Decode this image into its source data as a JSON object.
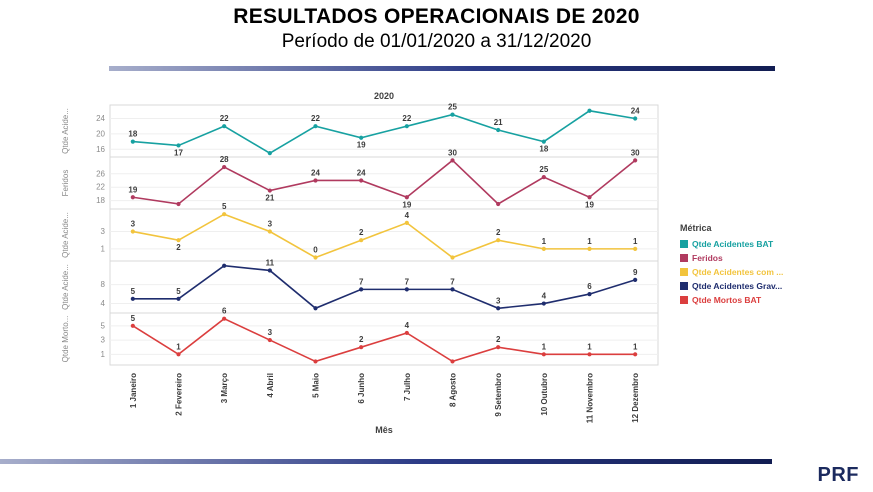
{
  "header": {
    "title": "RESULTADOS OPERACIONAIS DE 2020",
    "subtitle": "Período de 01/01/2020 a 31/12/2020"
  },
  "footer": {
    "logo": "PRF"
  },
  "theme": {
    "bar_gradient_left": "#A7AECB",
    "bar_gradient_mid": "#2B3A86",
    "bar_gradient_right": "#121D52",
    "logo_color": "#1B2A5E"
  },
  "chart_data": {
    "type": "line",
    "title": "2020",
    "xlabel": "Mês",
    "legend": {
      "title": "Métrica",
      "position": "right"
    },
    "categories": [
      "1 Janeiro",
      "2 Fevereiro",
      "3 Março",
      "4 Abril",
      "5 Maio",
      "6 Junho",
      "7 Julho",
      "8 Agosto",
      "9 Setembro",
      "10 Outubro",
      "11 Novembro",
      "12 Dezembro"
    ],
    "panels": [
      {
        "axis_label": "Qtde Acide...",
        "name": "Qtde Acidentes BAT",
        "color": "#17A1A1",
        "values": [
          18,
          17,
          22,
          15,
          22,
          19,
          22,
          25,
          21,
          18,
          26,
          24
        ],
        "labels": [
          "18",
          "17",
          "22",
          null,
          "22",
          "19",
          "22",
          "25",
          "21",
          "18",
          null,
          "24"
        ],
        "y_ticks": [
          24,
          20,
          16
        ],
        "y_range": [
          14,
          27.5
        ]
      },
      {
        "axis_label": "Feridos",
        "name": "Feridos",
        "color": "#B03A5F",
        "values": [
          19,
          17,
          28,
          21,
          24,
          24,
          19,
          30,
          17,
          25,
          19,
          30
        ],
        "labels": [
          "19",
          null,
          "28",
          "21",
          "24",
          "24",
          "19",
          "30",
          null,
          "25",
          "19",
          "30"
        ],
        "y_ticks": [
          26,
          22,
          18
        ],
        "y_range": [
          15.5,
          31
        ]
      },
      {
        "axis_label": "Qtde Acide...",
        "name": "Qtde Acidentes com ...",
        "color": "#F2C43D",
        "values": [
          3,
          2,
          5,
          3,
          0,
          2,
          4,
          0,
          2,
          1,
          1,
          1
        ],
        "labels": [
          "3",
          "2",
          "5",
          "3",
          "0",
          "2",
          "4",
          null,
          "2",
          "1",
          "1",
          "1"
        ],
        "y_ticks": [
          3,
          1
        ],
        "y_range": [
          -0.4,
          5.6
        ]
      },
      {
        "axis_label": "Qtde Acide...",
        "name": "Qtde Acidentes Grav...",
        "color": "#1F2D6E",
        "values": [
          5,
          5,
          12,
          11,
          3,
          7,
          7,
          7,
          3,
          4,
          6,
          9
        ],
        "labels": [
          "5",
          "5",
          null,
          "11",
          null,
          "7",
          "7",
          "7",
          "3",
          "4",
          "6",
          "9"
        ],
        "y_ticks": [
          8,
          4
        ],
        "y_range": [
          2,
          13
        ]
      },
      {
        "axis_label": "Qtde Morto...",
        "name": "Qtde Mortos BAT",
        "color": "#DB3E3E",
        "values": [
          5,
          1,
          6,
          3,
          0,
          2,
          4,
          0,
          2,
          1,
          1,
          1
        ],
        "labels": [
          "5",
          "1",
          "6",
          "3",
          null,
          "2",
          "4",
          null,
          "2",
          "1",
          "1",
          "1"
        ],
        "y_ticks": [
          5,
          3,
          1
        ],
        "y_range": [
          -0.5,
          6.8
        ]
      }
    ]
  }
}
